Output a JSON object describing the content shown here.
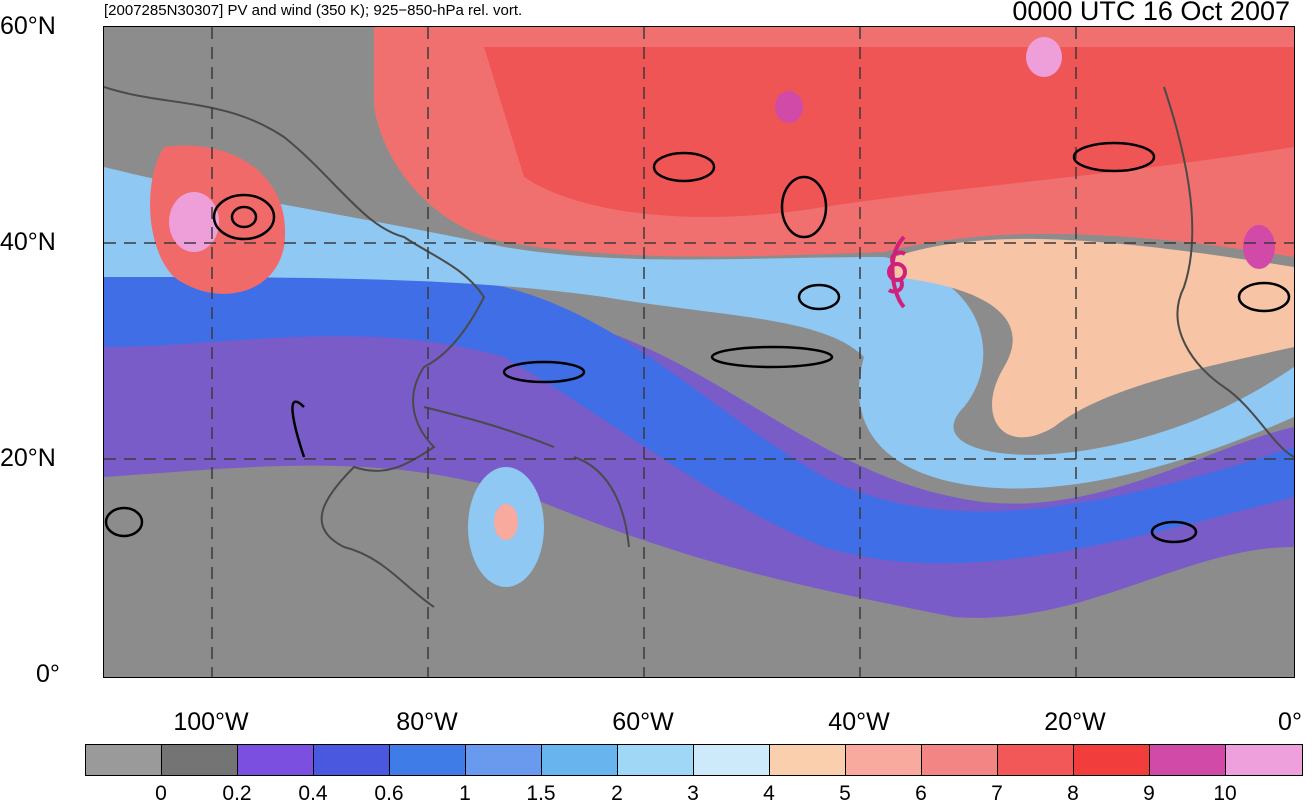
{
  "title_left": "[2007285N30307] PV and wind (350 K); 925−850-hPa rel. vort.",
  "title_right": "0000 UTC 16 Oct 2007",
  "lat_labels": [
    "60°N",
    "40°N",
    "20°N",
    "0°"
  ],
  "lon_labels": [
    "100°W",
    "80°W",
    "60°W",
    "40°W",
    "20°W",
    "0°"
  ],
  "colorbar": {
    "labels": [
      "0",
      "0.2",
      "0.4",
      "0.6",
      "1",
      "1.5",
      "2",
      "3",
      "4",
      "5",
      "6",
      "7",
      "8",
      "9",
      "10"
    ],
    "colors": [
      "#9a9a9a",
      "#747474",
      "#7b4fe0",
      "#4a58e0",
      "#3f7ce8",
      "#6a9aee",
      "#67b4ee",
      "#a0d6f6",
      "#cdeafa",
      "#f9cfae",
      "#f7aa9d",
      "#f48585",
      "#f25858",
      "#f23d3d",
      "#d24aa8",
      "#eea0dc"
    ]
  },
  "map": {
    "land_color": "#555555",
    "vorticity_color": "#000000",
    "track_color": "#d0207a",
    "storm_icon": "tropical-cyclone-icon"
  }
}
